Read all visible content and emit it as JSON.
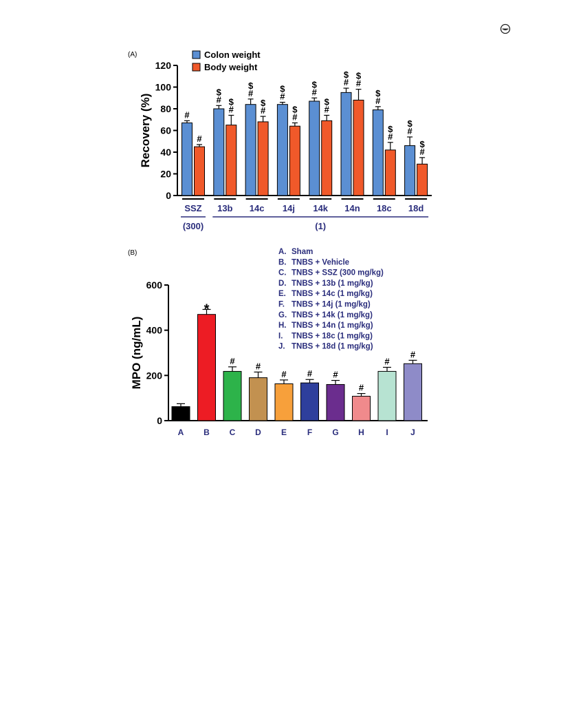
{
  "page": {
    "corner_icon": "open-access-icon"
  },
  "chart_data": [
    {
      "panel": "(A)",
      "type": "bar",
      "ylabel": "Recovery (%)",
      "ylim": [
        0,
        120
      ],
      "yticks": [
        0,
        20,
        40,
        60,
        80,
        100,
        120
      ],
      "categories": [
        "SSZ",
        "13b",
        "14c",
        "14j",
        "14k",
        "14n",
        "18c",
        "18d"
      ],
      "groups": [
        {
          "label": "(300)",
          "categories": [
            "SSZ"
          ]
        },
        {
          "label": "(1)",
          "categories": [
            "13b",
            "14c",
            "14j",
            "14k",
            "14n",
            "18c",
            "18d"
          ]
        }
      ],
      "series": [
        {
          "name": "Colon weight",
          "color": "#5b8fd3",
          "values": [
            67,
            80,
            84,
            84,
            87,
            95,
            79,
            46
          ],
          "errors": [
            2,
            3,
            5,
            2,
            3,
            4,
            3,
            8
          ],
          "annotations": [
            [
              "#"
            ],
            [
              "$",
              "#"
            ],
            [
              "$",
              "#"
            ],
            [
              "$",
              "#"
            ],
            [
              "$",
              "#"
            ],
            [
              "$",
              "#"
            ],
            [
              "$",
              "#"
            ],
            [
              "$",
              "#"
            ]
          ]
        },
        {
          "name": "Body weight",
          "color": "#f0592a",
          "values": [
            45,
            65,
            68,
            64,
            69,
            88,
            42,
            29
          ],
          "errors": [
            2,
            9,
            5,
            3,
            5,
            10,
            7,
            6
          ],
          "annotations": [
            [
              "#"
            ],
            [
              "$",
              "#"
            ],
            [
              "$",
              "#"
            ],
            [
              "$",
              "#"
            ],
            [
              "$",
              "#"
            ],
            [
              "$",
              "#"
            ],
            [
              "$",
              "#"
            ],
            [
              "$",
              "#"
            ]
          ]
        }
      ]
    },
    {
      "panel": "(B)",
      "type": "bar",
      "ylabel": "MPO (ng/mL)",
      "ylim": [
        0,
        600
      ],
      "yticks": [
        0,
        200,
        400,
        600
      ],
      "categories": [
        "A",
        "B",
        "C",
        "D",
        "E",
        "F",
        "G",
        "H",
        "I",
        "J"
      ],
      "values": [
        62,
        470,
        218,
        190,
        163,
        167,
        160,
        108,
        218,
        252
      ],
      "errors": [
        13,
        22,
        20,
        25,
        17,
        15,
        18,
        12,
        18,
        15
      ],
      "colors": [
        "#000000",
        "#ed1c24",
        "#2db34a",
        "#c29150",
        "#f7a03b",
        "#2e3f9c",
        "#6b2d8e",
        "#f08a8c",
        "#b7e3d2",
        "#8e8bc8"
      ],
      "annotations": [
        "",
        "*",
        "#",
        "#",
        "#",
        "#",
        "#",
        "#",
        "#",
        "#"
      ],
      "legend": [
        {
          "key": "A.",
          "text": "Sham"
        },
        {
          "key": "B.",
          "text": "TNBS + Vehicle"
        },
        {
          "key": "C.",
          "text": "TNBS + SSZ (300 mg/kg)"
        },
        {
          "key": "D.",
          "text": "TNBS + 13b (1 mg/kg)"
        },
        {
          "key": "E.",
          "text": "TNBS + 14c (1 mg/kg)"
        },
        {
          "key": "F.",
          "text": "TNBS + 14j (1 mg/kg)"
        },
        {
          "key": "G.",
          "text": "TNBS + 14k (1 mg/kg)"
        },
        {
          "key": "H.",
          "text": "TNBS + 14n (1 mg/kg)"
        },
        {
          "key": "I.",
          "text": "TNBS + 18c (1 mg/kg)"
        },
        {
          "key": "J.",
          "text": "TNBS + 18d (1 mg/kg)"
        }
      ]
    }
  ]
}
